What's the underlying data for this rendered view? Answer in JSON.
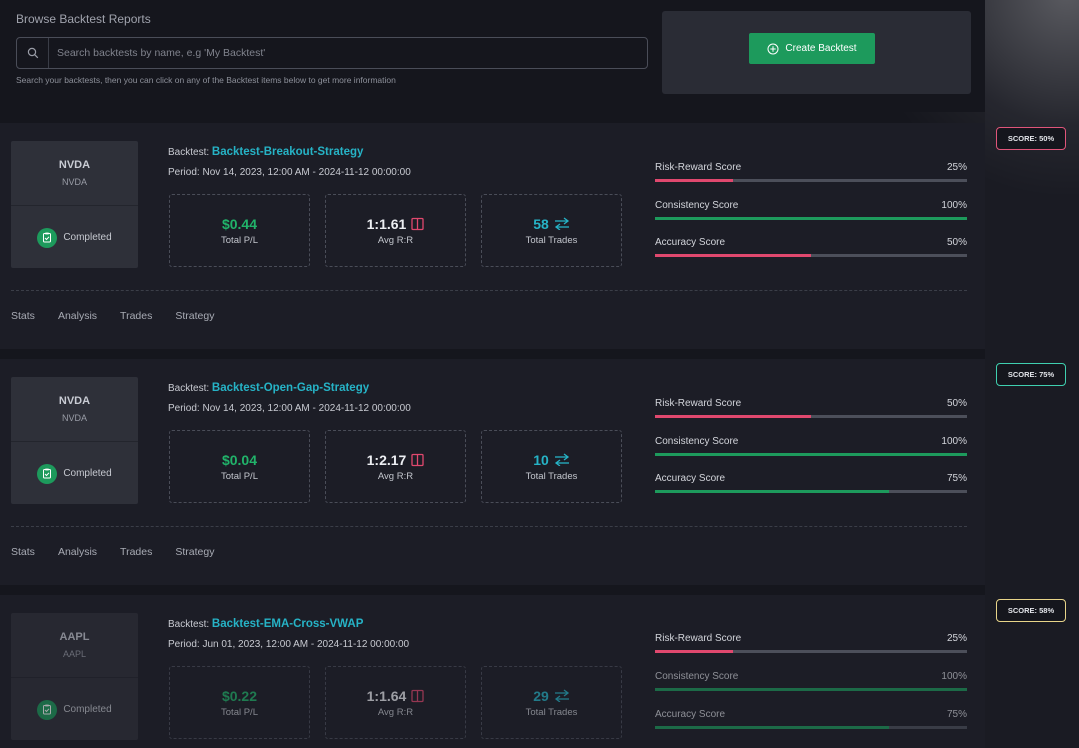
{
  "header": {
    "title": "Browse Backtest Reports",
    "search_placeholder": "Search backtests by name, e.g 'My Backtest'",
    "search_value": "",
    "hint": "Search your backtests, then you can click on any of the Backtest items below to get more information",
    "create_button": "Create Backtest"
  },
  "labels": {
    "backtest_prefix": "Backtest:",
    "period_prefix": "Period:",
    "total_pl": "Total P/L",
    "avg_rr": "Avg R:R",
    "total_trades": "Total Trades",
    "risk_reward": "Risk-Reward Score",
    "consistency": "Consistency Score",
    "accuracy": "Accuracy Score"
  },
  "tabs": [
    "Stats",
    "Analysis",
    "Trades",
    "Strategy"
  ],
  "colors": {
    "green": "#1d9a5c",
    "red": "#e0486e",
    "cyan": "#26b3c6",
    "badge_red": "#e0557a",
    "badge_teal": "#3fd0b0",
    "badge_yellow": "#e8d58a"
  },
  "backtests": [
    {
      "symbol": "NVDA",
      "symbol_sub": "NVDA",
      "status": "Completed",
      "name": "Backtest-Breakout-Strategy",
      "period": "Nov 14, 2023, 12:00 AM - 2024-11-12 00:00:00",
      "total_pl": "$0.44",
      "avg_rr": "1:1.61",
      "total_trades": "58",
      "score_badge": "SCORE: 50%",
      "risk_reward": {
        "label": "25%",
        "value": 0.25,
        "color": "#e0486e"
      },
      "consistency": {
        "label": "100%",
        "value": 1.0,
        "color": "#1d9a5c"
      },
      "accuracy": {
        "label": "50%",
        "value": 0.5,
        "color": "#e0486e"
      }
    },
    {
      "symbol": "NVDA",
      "symbol_sub": "NVDA",
      "status": "Completed",
      "name": "Backtest-Open-Gap-Strategy",
      "period": "Nov 14, 2023, 12:00 AM - 2024-11-12 00:00:00",
      "total_pl": "$0.04",
      "avg_rr": "1:2.17",
      "total_trades": "10",
      "score_badge": "SCORE: 75%",
      "risk_reward": {
        "label": "50%",
        "value": 0.5,
        "color": "#e0486e"
      },
      "consistency": {
        "label": "100%",
        "value": 1.0,
        "color": "#1d9a5c"
      },
      "accuracy": {
        "label": "75%",
        "value": 0.75,
        "color": "#1d9a5c"
      }
    },
    {
      "symbol": "AAPL",
      "symbol_sub": "AAPL",
      "status": "Completed",
      "name": "Backtest-EMA-Cross-VWAP",
      "period": "Jun 01, 2023, 12:00 AM - 2024-11-12 00:00:00",
      "total_pl": "$0.22",
      "avg_rr": "1:1.64",
      "total_trades": "29",
      "score_badge": "SCORE: 58%",
      "risk_reward": {
        "label": "25%",
        "value": 0.25,
        "color": "#e0486e"
      },
      "consistency": {
        "label": "100%",
        "value": 1.0,
        "color": "#1d9a5c"
      },
      "accuracy": {
        "label": "75%",
        "value": 0.75,
        "color": "#1d9a5c"
      }
    }
  ]
}
